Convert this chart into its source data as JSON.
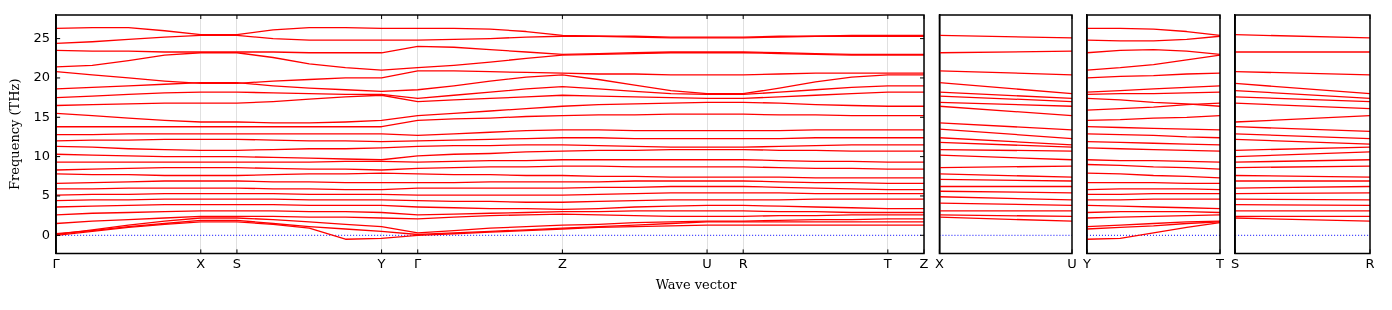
{
  "chart_data": [
    {
      "type": "line",
      "xlabel": "Wave vector",
      "ylabel": "Frequency (THz)",
      "color": "#ff0000",
      "grid": "x",
      "marker": "none",
      "line_style": "solid",
      "legend": false,
      "categories": [
        "Γ",
        null,
        null,
        null,
        "X",
        "S",
        null,
        null,
        null,
        "Y",
        "Γ",
        null,
        null,
        null,
        "Z",
        null,
        null,
        null,
        "U",
        "R",
        null,
        null,
        null,
        "T",
        "Z"
      ],
      "ylim": [
        -2.3,
        28
      ],
      "yticks": [
        0,
        5,
        10,
        15,
        20,
        25
      ],
      "ref_lines": [
        {
          "axis": "y",
          "value": 0,
          "color": "#0000ff",
          "line_style": "dotted"
        }
      ],
      "series": [
        {
          "values": [
            26.3,
            26.4,
            26.4,
            26.0,
            25.5,
            25.5,
            26.1,
            26.4,
            26.4,
            26.3,
            26.3,
            26.3,
            26.2,
            25.9,
            25.4,
            25.3,
            25.2,
            25.1,
            25.1,
            25.1,
            25.2,
            25.3,
            25.4,
            25.4,
            25.4
          ]
        },
        {
          "values": [
            24.4,
            24.6,
            24.9,
            25.2,
            25.4,
            25.4,
            25.0,
            24.8,
            24.8,
            24.8,
            24.8,
            24.9,
            25.0,
            25.2,
            25.3,
            25.3,
            25.3,
            25.2,
            25.2,
            25.2,
            25.3,
            25.3,
            25.3,
            25.3,
            25.3
          ]
        },
        {
          "values": [
            23.5,
            23.4,
            23.4,
            23.3,
            23.3,
            23.3,
            23.3,
            23.2,
            23.2,
            23.2,
            24.0,
            23.9,
            23.6,
            23.3,
            23.0,
            23.1,
            23.2,
            23.3,
            23.3,
            23.3,
            23.2,
            23.1,
            23.0,
            23.0,
            23.0
          ]
        },
        {
          "values": [
            21.4,
            21.6,
            22.2,
            22.9,
            23.2,
            23.2,
            22.6,
            21.8,
            21.3,
            21.0,
            21.3,
            21.6,
            22.0,
            22.5,
            22.9,
            23.0,
            23.1,
            23.2,
            23.2,
            23.2,
            23.1,
            23.0,
            22.9,
            22.9,
            22.9
          ]
        },
        {
          "values": [
            20.8,
            20.4,
            20.0,
            19.6,
            19.3,
            19.3,
            19.6,
            19.8,
            20.0,
            20.0,
            20.9,
            20.9,
            20.8,
            20.7,
            20.6,
            20.5,
            20.5,
            20.4,
            20.4,
            20.4,
            20.5,
            20.6,
            20.6,
            20.6,
            20.6
          ]
        },
        {
          "values": [
            18.6,
            18.8,
            19.0,
            19.2,
            19.4,
            19.4,
            19.0,
            18.7,
            18.5,
            18.3,
            18.5,
            19.0,
            19.6,
            20.1,
            20.4,
            19.8,
            19.1,
            18.4,
            18.0,
            18.0,
            18.7,
            19.5,
            20.1,
            20.4,
            20.4
          ]
        },
        {
          "values": [
            17.5,
            17.7,
            17.9,
            18.1,
            18.2,
            18.2,
            18.1,
            18.0,
            17.9,
            17.9,
            17.4,
            17.8,
            18.2,
            18.6,
            18.9,
            18.6,
            18.3,
            18.0,
            17.9,
            17.9,
            18.2,
            18.5,
            18.8,
            19.0,
            19.0
          ]
        },
        {
          "values": [
            16.5,
            16.6,
            16.7,
            16.8,
            16.8,
            16.8,
            17.0,
            17.3,
            17.6,
            17.8,
            17.0,
            17.2,
            17.4,
            17.6,
            17.8,
            17.7,
            17.6,
            17.5,
            17.4,
            17.4,
            17.6,
            17.8,
            18.0,
            18.2,
            18.2
          ]
        },
        {
          "values": [
            15.5,
            15.2,
            14.9,
            14.6,
            14.4,
            14.4,
            14.3,
            14.3,
            14.4,
            14.6,
            15.2,
            15.5,
            15.8,
            16.1,
            16.4,
            16.6,
            16.7,
            16.8,
            16.9,
            16.9,
            16.8,
            16.6,
            16.5,
            16.4,
            16.4
          ]
        },
        {
          "values": [
            13.8,
            13.8,
            13.8,
            13.8,
            13.8,
            13.8,
            13.8,
            13.8,
            13.8,
            13.8,
            14.6,
            14.8,
            14.9,
            15.1,
            15.2,
            15.3,
            15.3,
            15.4,
            15.4,
            15.4,
            15.3,
            15.3,
            15.2,
            15.2,
            15.2
          ]
        },
        {
          "values": [
            12.8,
            12.8,
            12.9,
            12.9,
            12.9,
            12.9,
            12.9,
            12.9,
            12.9,
            12.9,
            12.7,
            12.9,
            13.1,
            13.3,
            13.4,
            13.4,
            13.3,
            13.3,
            13.3,
            13.3,
            13.3,
            13.4,
            13.4,
            13.4,
            13.4
          ]
        },
        {
          "values": [
            12.0,
            12.1,
            12.1,
            12.2,
            12.2,
            12.2,
            12.1,
            12.0,
            12.0,
            11.9,
            12.0,
            12.1,
            12.2,
            12.3,
            12.4,
            12.4,
            12.3,
            12.3,
            12.3,
            12.3,
            12.3,
            12.4,
            12.4,
            12.4,
            12.4
          ]
        },
        {
          "values": [
            11.3,
            11.2,
            11.0,
            10.9,
            10.8,
            10.8,
            10.9,
            11.0,
            11.0,
            11.1,
            11.3,
            11.4,
            11.4,
            11.5,
            11.5,
            11.4,
            11.3,
            11.2,
            11.2,
            11.2,
            11.3,
            11.4,
            11.5,
            11.5,
            11.5
          ]
        },
        {
          "values": [
            10.3,
            10.2,
            10.1,
            10.0,
            10.0,
            10.0,
            9.9,
            9.8,
            9.7,
            9.6,
            10.1,
            10.3,
            10.4,
            10.6,
            10.7,
            10.8,
            10.8,
            10.9,
            10.9,
            10.9,
            10.8,
            10.8,
            10.7,
            10.7,
            10.7
          ]
        },
        {
          "values": [
            9.3,
            9.3,
            9.3,
            9.3,
            9.3,
            9.3,
            9.3,
            9.3,
            9.4,
            9.4,
            9.3,
            9.4,
            9.5,
            9.5,
            9.6,
            9.6,
            9.6,
            9.6,
            9.6,
            9.6,
            9.5,
            9.4,
            9.4,
            9.3,
            9.3
          ]
        },
        {
          "values": [
            8.3,
            8.4,
            8.5,
            8.6,
            8.6,
            8.6,
            8.5,
            8.4,
            8.4,
            8.3,
            8.5,
            8.6,
            8.7,
            8.7,
            8.8,
            8.8,
            8.7,
            8.7,
            8.7,
            8.7,
            8.6,
            8.5,
            8.5,
            8.4,
            8.4
          ]
        },
        {
          "values": [
            7.8,
            7.7,
            7.7,
            7.6,
            7.6,
            7.6,
            7.7,
            7.8,
            7.8,
            7.9,
            7.8,
            7.7,
            7.7,
            7.6,
            7.6,
            7.5,
            7.5,
            7.4,
            7.4,
            7.4,
            7.4,
            7.3,
            7.3,
            7.3,
            7.3
          ]
        },
        {
          "values": [
            6.6,
            6.7,
            6.8,
            6.9,
            6.9,
            6.9,
            6.8,
            6.8,
            6.7,
            6.7,
            6.7,
            6.7,
            6.8,
            6.8,
            6.8,
            6.8,
            6.9,
            6.9,
            6.9,
            6.9,
            6.8,
            6.7,
            6.7,
            6.6,
            6.6
          ]
        },
        {
          "values": [
            5.9,
            5.9,
            6.0,
            6.0,
            6.0,
            6.0,
            5.9,
            5.9,
            5.8,
            5.8,
            6.0,
            6.0,
            6.0,
            6.0,
            6.0,
            6.1,
            6.1,
            6.2,
            6.2,
            6.2,
            6.1,
            6.0,
            5.9,
            5.8,
            5.8
          ]
        },
        {
          "values": [
            5.1,
            5.2,
            5.2,
            5.3,
            5.3,
            5.3,
            5.3,
            5.2,
            5.2,
            5.2,
            5.1,
            5.1,
            5.1,
            5.1,
            5.1,
            5.2,
            5.3,
            5.4,
            5.4,
            5.4,
            5.4,
            5.3,
            5.3,
            5.3,
            5.3
          ]
        },
        {
          "values": [
            4.4,
            4.5,
            4.5,
            4.6,
            4.6,
            4.6,
            4.6,
            4.5,
            4.5,
            4.5,
            4.4,
            4.3,
            4.3,
            4.2,
            4.2,
            4.3,
            4.4,
            4.5,
            4.5,
            4.5,
            4.5,
            4.6,
            4.6,
            4.6,
            4.6
          ]
        },
        {
          "values": [
            3.6,
            3.7,
            3.8,
            3.9,
            3.9,
            3.9,
            3.9,
            3.8,
            3.8,
            3.8,
            3.6,
            3.5,
            3.4,
            3.4,
            3.3,
            3.4,
            3.6,
            3.7,
            3.8,
            3.8,
            3.7,
            3.6,
            3.5,
            3.4,
            3.4
          ]
        },
        {
          "values": [
            2.6,
            2.8,
            2.9,
            3.0,
            3.1,
            3.1,
            3.1,
            3.0,
            3.0,
            2.9,
            2.6,
            2.7,
            2.8,
            2.9,
            3.0,
            3.0,
            3.1,
            3.1,
            3.1,
            3.1,
            3.0,
            3.0,
            2.9,
            2.9,
            2.9
          ]
        },
        {
          "values": [
            1.5,
            1.8,
            2.0,
            2.2,
            2.4,
            2.4,
            2.4,
            2.3,
            2.3,
            2.2,
            2.1,
            2.3,
            2.5,
            2.6,
            2.7,
            2.6,
            2.5,
            2.4,
            2.4,
            2.4,
            2.5,
            2.5,
            2.6,
            2.6,
            2.6
          ]
        },
        {
          "values": [
            0.1,
            0.7,
            1.3,
            1.8,
            2.2,
            2.2,
            2.0,
            1.7,
            1.4,
            1.1,
            0.3,
            0.6,
            0.9,
            1.1,
            1.3,
            1.4,
            1.6,
            1.7,
            1.8,
            1.8,
            1.9,
            2.0,
            2.0,
            2.1,
            2.1
          ]
        },
        {
          "values": [
            0.2,
            0.6,
            1.1,
            1.5,
            1.9,
            1.9,
            1.5,
            1.1,
            0.8,
            0.5,
            0.1,
            0.3,
            0.5,
            0.7,
            0.9,
            1.1,
            1.3,
            1.5,
            1.7,
            1.7,
            1.7,
            1.7,
            1.7,
            1.7,
            1.7
          ]
        },
        {
          "values": [
            0.0,
            0.5,
            1.0,
            1.4,
            1.7,
            1.7,
            1.4,
            0.9,
            -0.5,
            -0.4,
            0.0,
            0.2,
            0.4,
            0.6,
            0.8,
            1.0,
            1.1,
            1.2,
            1.3,
            1.3,
            1.3,
            1.3,
            1.3,
            1.3,
            1.3
          ]
        }
      ]
    },
    {
      "type": "line",
      "color": "#ff0000",
      "marker": "none",
      "line_style": "solid",
      "legend": false,
      "tick_labels": "x",
      "categories": [
        "X",
        "U"
      ],
      "ylim": [
        -2.3,
        28
      ],
      "ref_lines": [
        {
          "axis": "y",
          "value": 0,
          "color": "#0000ff",
          "line_style": "dotted"
        }
      ],
      "series": [
        {
          "values": [
            25.4,
            25.1
          ]
        },
        {
          "values": [
            23.2,
            23.4
          ]
        },
        {
          "values": [
            20.9,
            20.4
          ]
        },
        {
          "values": [
            19.4,
            18.0
          ]
        },
        {
          "values": [
            18.2,
            17.4
          ]
        },
        {
          "values": [
            17.7,
            17.0
          ]
        },
        {
          "values": [
            16.9,
            16.4
          ]
        },
        {
          "values": [
            16.4,
            15.2
          ]
        },
        {
          "values": [
            14.3,
            13.4
          ]
        },
        {
          "values": [
            13.5,
            12.3
          ]
        },
        {
          "values": [
            12.4,
            11.5
          ]
        },
        {
          "values": [
            11.8,
            11.2
          ]
        },
        {
          "values": [
            10.9,
            10.7
          ]
        },
        {
          "values": [
            10.2,
            9.6
          ]
        },
        {
          "values": [
            8.6,
            8.8
          ]
        },
        {
          "values": [
            7.8,
            7.4
          ]
        },
        {
          "values": [
            7.1,
            6.9
          ]
        },
        {
          "values": [
            6.2,
            6.2
          ]
        },
        {
          "values": [
            5.6,
            5.4
          ]
        },
        {
          "values": [
            4.9,
            4.5
          ]
        },
        {
          "values": [
            4.1,
            3.8
          ]
        },
        {
          "values": [
            3.1,
            3.1
          ]
        },
        {
          "values": [
            2.6,
            2.4
          ]
        },
        {
          "values": [
            2.3,
            1.8
          ]
        }
      ]
    },
    {
      "type": "line",
      "color": "#ff0000",
      "marker": "none",
      "line_style": "solid",
      "legend": false,
      "tick_labels": "x",
      "categories": [
        "Y",
        null,
        null,
        null,
        "T"
      ],
      "ylim": [
        -2.3,
        28
      ],
      "ref_lines": [
        {
          "axis": "y",
          "value": 0,
          "color": "#0000ff",
          "line_style": "dotted"
        }
      ],
      "series": [
        {
          "values": [
            26.3,
            26.3,
            26.2,
            25.9,
            25.4
          ]
        },
        {
          "values": [
            24.8,
            24.7,
            24.7,
            24.9,
            25.3
          ]
        },
        {
          "values": [
            23.2,
            23.5,
            23.6,
            23.4,
            23.0
          ]
        },
        {
          "values": [
            21.0,
            21.3,
            21.7,
            22.3,
            22.9
          ]
        },
        {
          "values": [
            20.0,
            20.2,
            20.3,
            20.5,
            20.6
          ]
        },
        {
          "values": [
            18.2,
            18.4,
            18.6,
            18.8,
            19.0
          ]
        },
        {
          "values": [
            17.9,
            18.0,
            18.0,
            18.1,
            18.2
          ]
        },
        {
          "values": [
            17.4,
            17.2,
            16.9,
            16.7,
            16.4
          ]
        },
        {
          "values": [
            15.9,
            16.1,
            16.3,
            16.6,
            16.8
          ]
        },
        {
          "values": [
            14.6,
            14.7,
            14.9,
            15.0,
            15.2
          ]
        },
        {
          "values": [
            13.8,
            13.7,
            13.6,
            13.5,
            13.4
          ]
        },
        {
          "values": [
            12.9,
            12.8,
            12.7,
            12.5,
            12.4
          ]
        },
        {
          "values": [
            11.9,
            11.8,
            11.7,
            11.6,
            11.5
          ]
        },
        {
          "values": [
            11.1,
            11.0,
            10.9,
            10.8,
            10.7
          ]
        },
        {
          "values": [
            9.6,
            9.5,
            9.5,
            9.4,
            9.3
          ]
        },
        {
          "values": [
            9.0,
            8.9,
            8.7,
            8.6,
            8.4
          ]
        },
        {
          "values": [
            7.9,
            7.8,
            7.6,
            7.5,
            7.3
          ]
        },
        {
          "values": [
            6.7,
            6.7,
            6.7,
            6.6,
            6.6
          ]
        },
        {
          "values": [
            5.8,
            5.9,
            5.9,
            5.9,
            5.8
          ]
        },
        {
          "values": [
            5.2,
            5.2,
            5.3,
            5.3,
            5.3
          ]
        },
        {
          "values": [
            4.5,
            4.5,
            4.6,
            4.6,
            4.6
          ]
        },
        {
          "values": [
            3.8,
            3.7,
            3.6,
            3.5,
            3.4
          ]
        },
        {
          "values": [
            2.9,
            3.0,
            3.0,
            3.0,
            2.9
          ]
        },
        {
          "values": [
            2.2,
            2.3,
            2.4,
            2.5,
            2.6
          ]
        },
        {
          "values": [
            1.1,
            1.3,
            1.5,
            1.7,
            1.8
          ]
        },
        {
          "values": [
            0.8,
            1.0,
            1.2,
            1.5,
            1.7
          ]
        },
        {
          "values": [
            -0.5,
            -0.4,
            0.3,
            1.0,
            1.6
          ]
        }
      ]
    },
    {
      "type": "line",
      "color": "#ff0000",
      "marker": "none",
      "line_style": "solid",
      "legend": false,
      "tick_labels": "x",
      "categories": [
        "S",
        "R"
      ],
      "ylim": [
        -2.3,
        28
      ],
      "ref_lines": [
        {
          "axis": "y",
          "value": 0,
          "color": "#0000ff",
          "line_style": "dotted"
        }
      ],
      "series": [
        {
          "values": [
            25.5,
            25.1
          ]
        },
        {
          "values": [
            23.3,
            23.3
          ]
        },
        {
          "values": [
            20.8,
            20.4
          ]
        },
        {
          "values": [
            19.3,
            18.0
          ]
        },
        {
          "values": [
            18.4,
            17.4
          ]
        },
        {
          "values": [
            17.6,
            17.0
          ]
        },
        {
          "values": [
            16.8,
            16.1
          ]
        },
        {
          "values": [
            14.4,
            15.2
          ]
        },
        {
          "values": [
            13.8,
            13.2
          ]
        },
        {
          "values": [
            12.9,
            12.3
          ]
        },
        {
          "values": [
            12.2,
            11.6
          ]
        },
        {
          "values": [
            10.8,
            11.2
          ]
        },
        {
          "values": [
            10.0,
            10.6
          ]
        },
        {
          "values": [
            9.3,
            9.6
          ]
        },
        {
          "values": [
            8.6,
            8.8
          ]
        },
        {
          "values": [
            7.6,
            7.4
          ]
        },
        {
          "values": [
            6.9,
            6.9
          ]
        },
        {
          "values": [
            6.0,
            6.2
          ]
        },
        {
          "values": [
            5.3,
            5.4
          ]
        },
        {
          "values": [
            4.6,
            4.5
          ]
        },
        {
          "values": [
            3.9,
            3.8
          ]
        },
        {
          "values": [
            3.1,
            3.1
          ]
        },
        {
          "values": [
            2.4,
            2.4
          ]
        },
        {
          "values": [
            2.2,
            1.8
          ]
        }
      ]
    }
  ]
}
